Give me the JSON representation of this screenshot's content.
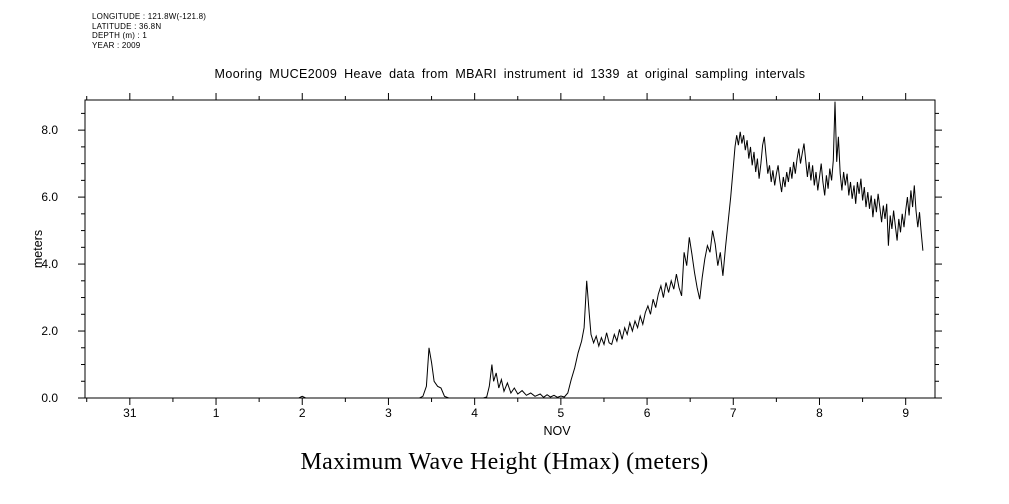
{
  "meta": {
    "lines": [
      "LONGITUDE : 121.8W(-121.8)",
      "LATITUDE : 36.8N",
      "DEPTH (m) : 1",
      "YEAR : 2009"
    ]
  },
  "title": "Mooring MUCE2009 Heave data from MBARI instrument id 1339 at original sampling intervals",
  "caption": "Maximum Wave Height (Hmax) (meters)",
  "chart_data": {
    "type": "line",
    "title": "Mooring MUCE2009 Heave data from MBARI instrument id 1339 at original sampling intervals",
    "xlabel": "NOV",
    "ylabel": "meters",
    "xlim": [
      -0.52,
      9.34
    ],
    "ylim": [
      0,
      8.9
    ],
    "grid": false,
    "legend": "none",
    "line_color": "#000000",
    "axis_color": "#000000",
    "background_color": "#ffffff",
    "x_major_ticks": [
      {
        "pos": 0,
        "label": "31"
      },
      {
        "pos": 1,
        "label": "1"
      },
      {
        "pos": 2,
        "label": "2"
      },
      {
        "pos": 3,
        "label": "3"
      },
      {
        "pos": 4,
        "label": "4"
      },
      {
        "pos": 5,
        "label": "5"
      },
      {
        "pos": 6,
        "label": "6"
      },
      {
        "pos": 7,
        "label": "7"
      },
      {
        "pos": 8,
        "label": "8"
      },
      {
        "pos": 9,
        "label": "9"
      }
    ],
    "x_minor_step": 0.5,
    "y_major_ticks": [
      {
        "pos": 0,
        "label": "0.0"
      },
      {
        "pos": 2,
        "label": "2.0"
      },
      {
        "pos": 4,
        "label": "4.0"
      },
      {
        "pos": 6,
        "label": "6.0"
      },
      {
        "pos": 8,
        "label": "8.0"
      }
    ],
    "y_minor_step": 0.5,
    "series": [
      {
        "name": "Hmax",
        "points": [
          [
            -0.52,
            0
          ],
          [
            0.0,
            0
          ],
          [
            0.5,
            0
          ],
          [
            1.0,
            0
          ],
          [
            1.5,
            0
          ],
          [
            1.96,
            0
          ],
          [
            2.0,
            0.05
          ],
          [
            2.04,
            0
          ],
          [
            2.5,
            0
          ],
          [
            3.0,
            0
          ],
          [
            3.36,
            0
          ],
          [
            3.4,
            0.05
          ],
          [
            3.44,
            0.35
          ],
          [
            3.47,
            1.5
          ],
          [
            3.5,
            1.05
          ],
          [
            3.53,
            0.5
          ],
          [
            3.57,
            0.35
          ],
          [
            3.61,
            0.3
          ],
          [
            3.65,
            0.05
          ],
          [
            3.7,
            0
          ],
          [
            3.9,
            0
          ],
          [
            4.1,
            0
          ],
          [
            4.14,
            0.03
          ],
          [
            4.17,
            0.35
          ],
          [
            4.2,
            1.0
          ],
          [
            4.22,
            0.5
          ],
          [
            4.25,
            0.75
          ],
          [
            4.28,
            0.3
          ],
          [
            4.31,
            0.55
          ],
          [
            4.34,
            0.2
          ],
          [
            4.38,
            0.45
          ],
          [
            4.42,
            0.15
          ],
          [
            4.46,
            0.3
          ],
          [
            4.5,
            0.12
          ],
          [
            4.55,
            0.22
          ],
          [
            4.6,
            0.08
          ],
          [
            4.65,
            0.15
          ],
          [
            4.7,
            0.05
          ],
          [
            4.76,
            0.12
          ],
          [
            4.8,
            0.02
          ],
          [
            4.84,
            0.1
          ],
          [
            4.88,
            0.03
          ],
          [
            4.92,
            0.08
          ],
          [
            4.96,
            0.02
          ],
          [
            5.0,
            0.06
          ],
          [
            5.04,
            0.03
          ],
          [
            5.08,
            0.15
          ],
          [
            5.12,
            0.55
          ],
          [
            5.16,
            0.9
          ],
          [
            5.2,
            1.35
          ],
          [
            5.24,
            1.7
          ],
          [
            5.27,
            2.1
          ],
          [
            5.3,
            3.5
          ],
          [
            5.33,
            2.5
          ],
          [
            5.35,
            1.9
          ],
          [
            5.38,
            1.65
          ],
          [
            5.41,
            1.85
          ],
          [
            5.44,
            1.55
          ],
          [
            5.47,
            1.8
          ],
          [
            5.5,
            1.6
          ],
          [
            5.53,
            1.95
          ],
          [
            5.56,
            1.65
          ],
          [
            5.59,
            1.6
          ],
          [
            5.62,
            1.9
          ],
          [
            5.65,
            1.7
          ],
          [
            5.68,
            2.05
          ],
          [
            5.71,
            1.75
          ],
          [
            5.74,
            2.1
          ],
          [
            5.77,
            1.9
          ],
          [
            5.8,
            2.25
          ],
          [
            5.83,
            2.0
          ],
          [
            5.86,
            2.3
          ],
          [
            5.89,
            2.1
          ],
          [
            5.92,
            2.45
          ],
          [
            5.95,
            2.2
          ],
          [
            5.98,
            2.55
          ],
          [
            6.01,
            2.75
          ],
          [
            6.04,
            2.5
          ],
          [
            6.07,
            2.95
          ],
          [
            6.1,
            2.7
          ],
          [
            6.13,
            3.1
          ],
          [
            6.16,
            3.35
          ],
          [
            6.19,
            3.0
          ],
          [
            6.22,
            3.45
          ],
          [
            6.25,
            3.15
          ],
          [
            6.28,
            3.5
          ],
          [
            6.31,
            3.25
          ],
          [
            6.34,
            3.7
          ],
          [
            6.37,
            3.3
          ],
          [
            6.4,
            3.05
          ],
          [
            6.43,
            4.35
          ],
          [
            6.46,
            3.95
          ],
          [
            6.49,
            4.8
          ],
          [
            6.52,
            4.3
          ],
          [
            6.55,
            3.75
          ],
          [
            6.58,
            3.3
          ],
          [
            6.61,
            2.95
          ],
          [
            6.64,
            3.6
          ],
          [
            6.67,
            4.15
          ],
          [
            6.7,
            4.55
          ],
          [
            6.73,
            4.35
          ],
          [
            6.76,
            5.0
          ],
          [
            6.79,
            4.6
          ],
          [
            6.82,
            3.95
          ],
          [
            6.85,
            4.35
          ],
          [
            6.88,
            3.65
          ],
          [
            6.91,
            4.5
          ],
          [
            6.94,
            5.25
          ],
          [
            6.97,
            6.0
          ],
          [
            7.0,
            6.9
          ],
          [
            7.02,
            7.5
          ],
          [
            7.04,
            7.85
          ],
          [
            7.06,
            7.55
          ],
          [
            7.08,
            7.95
          ],
          [
            7.1,
            7.6
          ],
          [
            7.12,
            7.85
          ],
          [
            7.14,
            7.4
          ],
          [
            7.16,
            7.7
          ],
          [
            7.18,
            7.15
          ],
          [
            7.2,
            7.5
          ],
          [
            7.22,
            6.95
          ],
          [
            7.24,
            7.35
          ],
          [
            7.26,
            6.75
          ],
          [
            7.28,
            7.15
          ],
          [
            7.3,
            6.55
          ],
          [
            7.32,
            7.0
          ],
          [
            7.34,
            7.55
          ],
          [
            7.36,
            7.8
          ],
          [
            7.38,
            7.25
          ],
          [
            7.4,
            6.7
          ],
          [
            7.42,
            6.95
          ],
          [
            7.44,
            6.45
          ],
          [
            7.46,
            6.8
          ],
          [
            7.48,
            6.35
          ],
          [
            7.5,
            6.7
          ],
          [
            7.52,
            6.95
          ],
          [
            7.54,
            6.5
          ],
          [
            7.56,
            6.15
          ],
          [
            7.58,
            6.6
          ],
          [
            7.6,
            6.3
          ],
          [
            7.62,
            6.75
          ],
          [
            7.64,
            6.45
          ],
          [
            7.66,
            6.9
          ],
          [
            7.68,
            6.55
          ],
          [
            7.7,
            7.05
          ],
          [
            7.72,
            6.7
          ],
          [
            7.74,
            7.15
          ],
          [
            7.76,
            7.45
          ],
          [
            7.78,
            7.0
          ],
          [
            7.8,
            7.3
          ],
          [
            7.82,
            7.6
          ],
          [
            7.84,
            7.1
          ],
          [
            7.86,
            6.6
          ],
          [
            7.88,
            7.05
          ],
          [
            7.9,
            6.5
          ],
          [
            7.92,
            6.95
          ],
          [
            7.94,
            6.35
          ],
          [
            7.96,
            6.75
          ],
          [
            7.98,
            6.2
          ],
          [
            8.0,
            6.6
          ],
          [
            8.02,
            7.0
          ],
          [
            8.04,
            6.45
          ],
          [
            8.06,
            6.05
          ],
          [
            8.08,
            6.65
          ],
          [
            8.1,
            6.25
          ],
          [
            8.12,
            6.85
          ],
          [
            8.14,
            6.5
          ],
          [
            8.16,
            7.1
          ],
          [
            8.18,
            8.85
          ],
          [
            8.2,
            7.05
          ],
          [
            8.22,
            7.8
          ],
          [
            8.24,
            6.7
          ],
          [
            8.26,
            6.2
          ],
          [
            8.28,
            6.75
          ],
          [
            8.3,
            6.35
          ],
          [
            8.32,
            6.7
          ],
          [
            8.34,
            6.05
          ],
          [
            8.36,
            6.45
          ],
          [
            8.38,
            5.95
          ],
          [
            8.4,
            6.35
          ],
          [
            8.42,
            5.8
          ],
          [
            8.44,
            6.45
          ],
          [
            8.46,
            6.1
          ],
          [
            8.48,
            6.55
          ],
          [
            8.5,
            5.9
          ],
          [
            8.52,
            6.3
          ],
          [
            8.54,
            5.7
          ],
          [
            8.56,
            6.15
          ],
          [
            8.58,
            5.65
          ],
          [
            8.6,
            6.05
          ],
          [
            8.62,
            5.4
          ],
          [
            8.64,
            5.95
          ],
          [
            8.66,
            5.55
          ],
          [
            8.68,
            6.1
          ],
          [
            8.7,
            5.7
          ],
          [
            8.72,
            5.25
          ],
          [
            8.74,
            5.75
          ],
          [
            8.76,
            5.35
          ],
          [
            8.78,
            5.8
          ],
          [
            8.8,
            4.55
          ],
          [
            8.82,
            5.45
          ],
          [
            8.84,
            5.05
          ],
          [
            8.86,
            5.6
          ],
          [
            8.88,
            5.15
          ],
          [
            8.9,
            4.7
          ],
          [
            8.92,
            5.35
          ],
          [
            8.94,
            4.95
          ],
          [
            8.96,
            5.5
          ],
          [
            8.98,
            5.1
          ],
          [
            9.0,
            5.6
          ],
          [
            9.02,
            6.0
          ],
          [
            9.04,
            5.45
          ],
          [
            9.06,
            6.2
          ],
          [
            9.08,
            5.7
          ],
          [
            9.1,
            6.35
          ],
          [
            9.12,
            5.6
          ],
          [
            9.14,
            5.1
          ],
          [
            9.16,
            5.55
          ],
          [
            9.18,
            4.95
          ],
          [
            9.2,
            4.4
          ]
        ]
      }
    ]
  }
}
